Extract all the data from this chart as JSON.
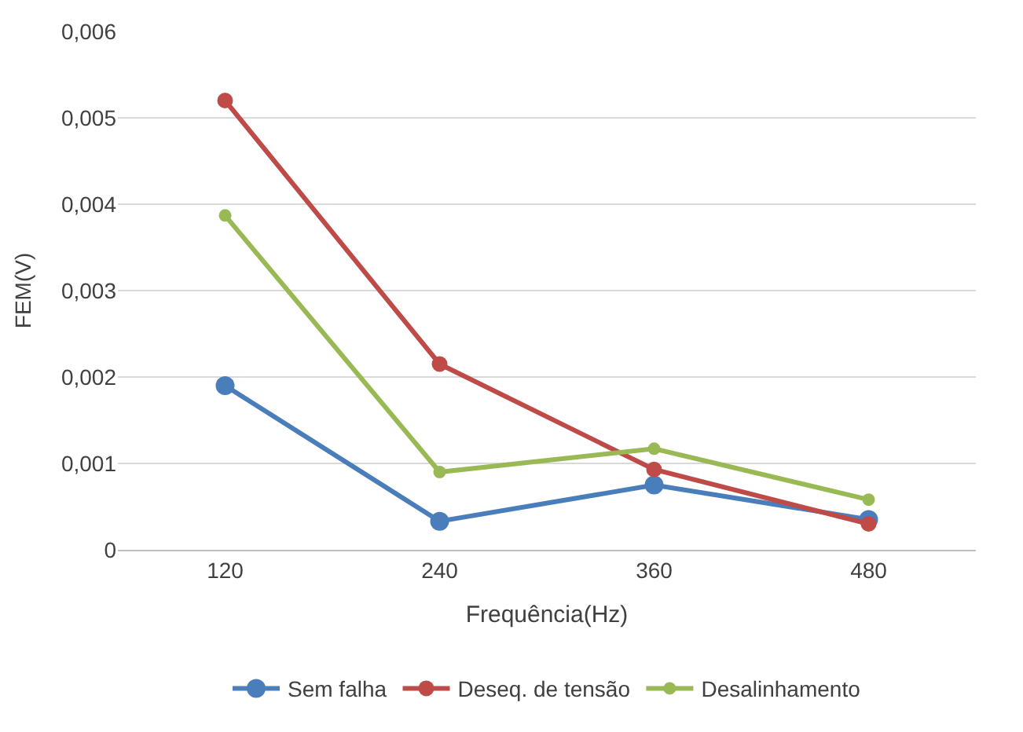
{
  "chart_data": {
    "type": "line",
    "xlabel": "Frequência(Hz)",
    "ylabel": "FEM(V)",
    "categories": [
      "120",
      "240",
      "360",
      "480"
    ],
    "series": [
      {
        "name": "Sem falha",
        "color": "#4a7ebb",
        "values": [
          0.0019,
          0.00033,
          0.00075,
          0.00035
        ]
      },
      {
        "name": "Deseq. de tensão",
        "color": "#be4b48",
        "values": [
          0.0052,
          0.00215,
          0.00093,
          0.0003
        ]
      },
      {
        "name": "Desalinhamento",
        "color": "#98b954",
        "values": [
          0.00387,
          0.0009,
          0.00117,
          0.00058
        ]
      }
    ],
    "ylim": [
      0,
      0.006
    ],
    "yticks": [
      0,
      {
        "value": 0.001,
        "label": "0,001"
      },
      {
        "value": 0.002,
        "label": "0,002"
      },
      {
        "value": 0.003,
        "label": "0,003"
      },
      {
        "value": 0.004,
        "label": "0,004"
      },
      {
        "value": 0.005,
        "label": "0,005"
      },
      {
        "value": 0.006,
        "label": "0,006"
      }
    ],
    "grid": "y",
    "legend": "bottom",
    "marker": "circle",
    "line_style": "solid"
  }
}
